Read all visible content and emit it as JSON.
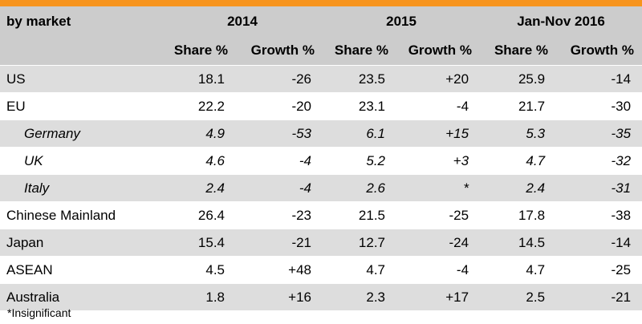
{
  "table": {
    "market_header": "by market",
    "year_headers": [
      "2014",
      "2015",
      "Jan-Nov 2016"
    ],
    "sub_headers": [
      "Share %",
      "Growth %",
      "Share %",
      "Growth %",
      "Share %",
      "Growth %"
    ],
    "rows": [
      {
        "market": "US",
        "values": [
          "18.1",
          "-26",
          "23.5",
          "+20",
          "25.9",
          "-14"
        ],
        "sub": false
      },
      {
        "market": "EU",
        "values": [
          "22.2",
          "-20",
          "23.1",
          "-4",
          "21.7",
          "-30"
        ],
        "sub": false
      },
      {
        "market": "Germany",
        "values": [
          "4.9",
          "-53",
          "6.1",
          "+15",
          "5.3",
          "-35"
        ],
        "sub": true
      },
      {
        "market": "UK",
        "values": [
          "4.6",
          "-4",
          "5.2",
          "+3",
          "4.7",
          "-32"
        ],
        "sub": true
      },
      {
        "market": "Italy",
        "values": [
          "2.4",
          "-4",
          "2.6",
          "*",
          "2.4",
          "-31"
        ],
        "sub": true
      },
      {
        "market": "Chinese Mainland",
        "values": [
          "26.4",
          "-23",
          "21.5",
          "-25",
          "17.8",
          "-38"
        ],
        "sub": false
      },
      {
        "market": "Japan",
        "values": [
          "15.4",
          "-21",
          "12.7",
          "-24",
          "14.5",
          "-14"
        ],
        "sub": false
      },
      {
        "market": "ASEAN",
        "values": [
          "4.5",
          "+48",
          "4.7",
          "-4",
          "4.7",
          "-25"
        ],
        "sub": false
      },
      {
        "market": "Australia",
        "values": [
          "1.8",
          "+16",
          "2.3",
          "+17",
          "2.5",
          "-21"
        ],
        "sub": false
      }
    ]
  },
  "footnote": "*Insignificant",
  "colors": {
    "accent_bar": "#f7941d",
    "header_bg": "#cccccc",
    "stripe_bg": "#dddddd"
  }
}
